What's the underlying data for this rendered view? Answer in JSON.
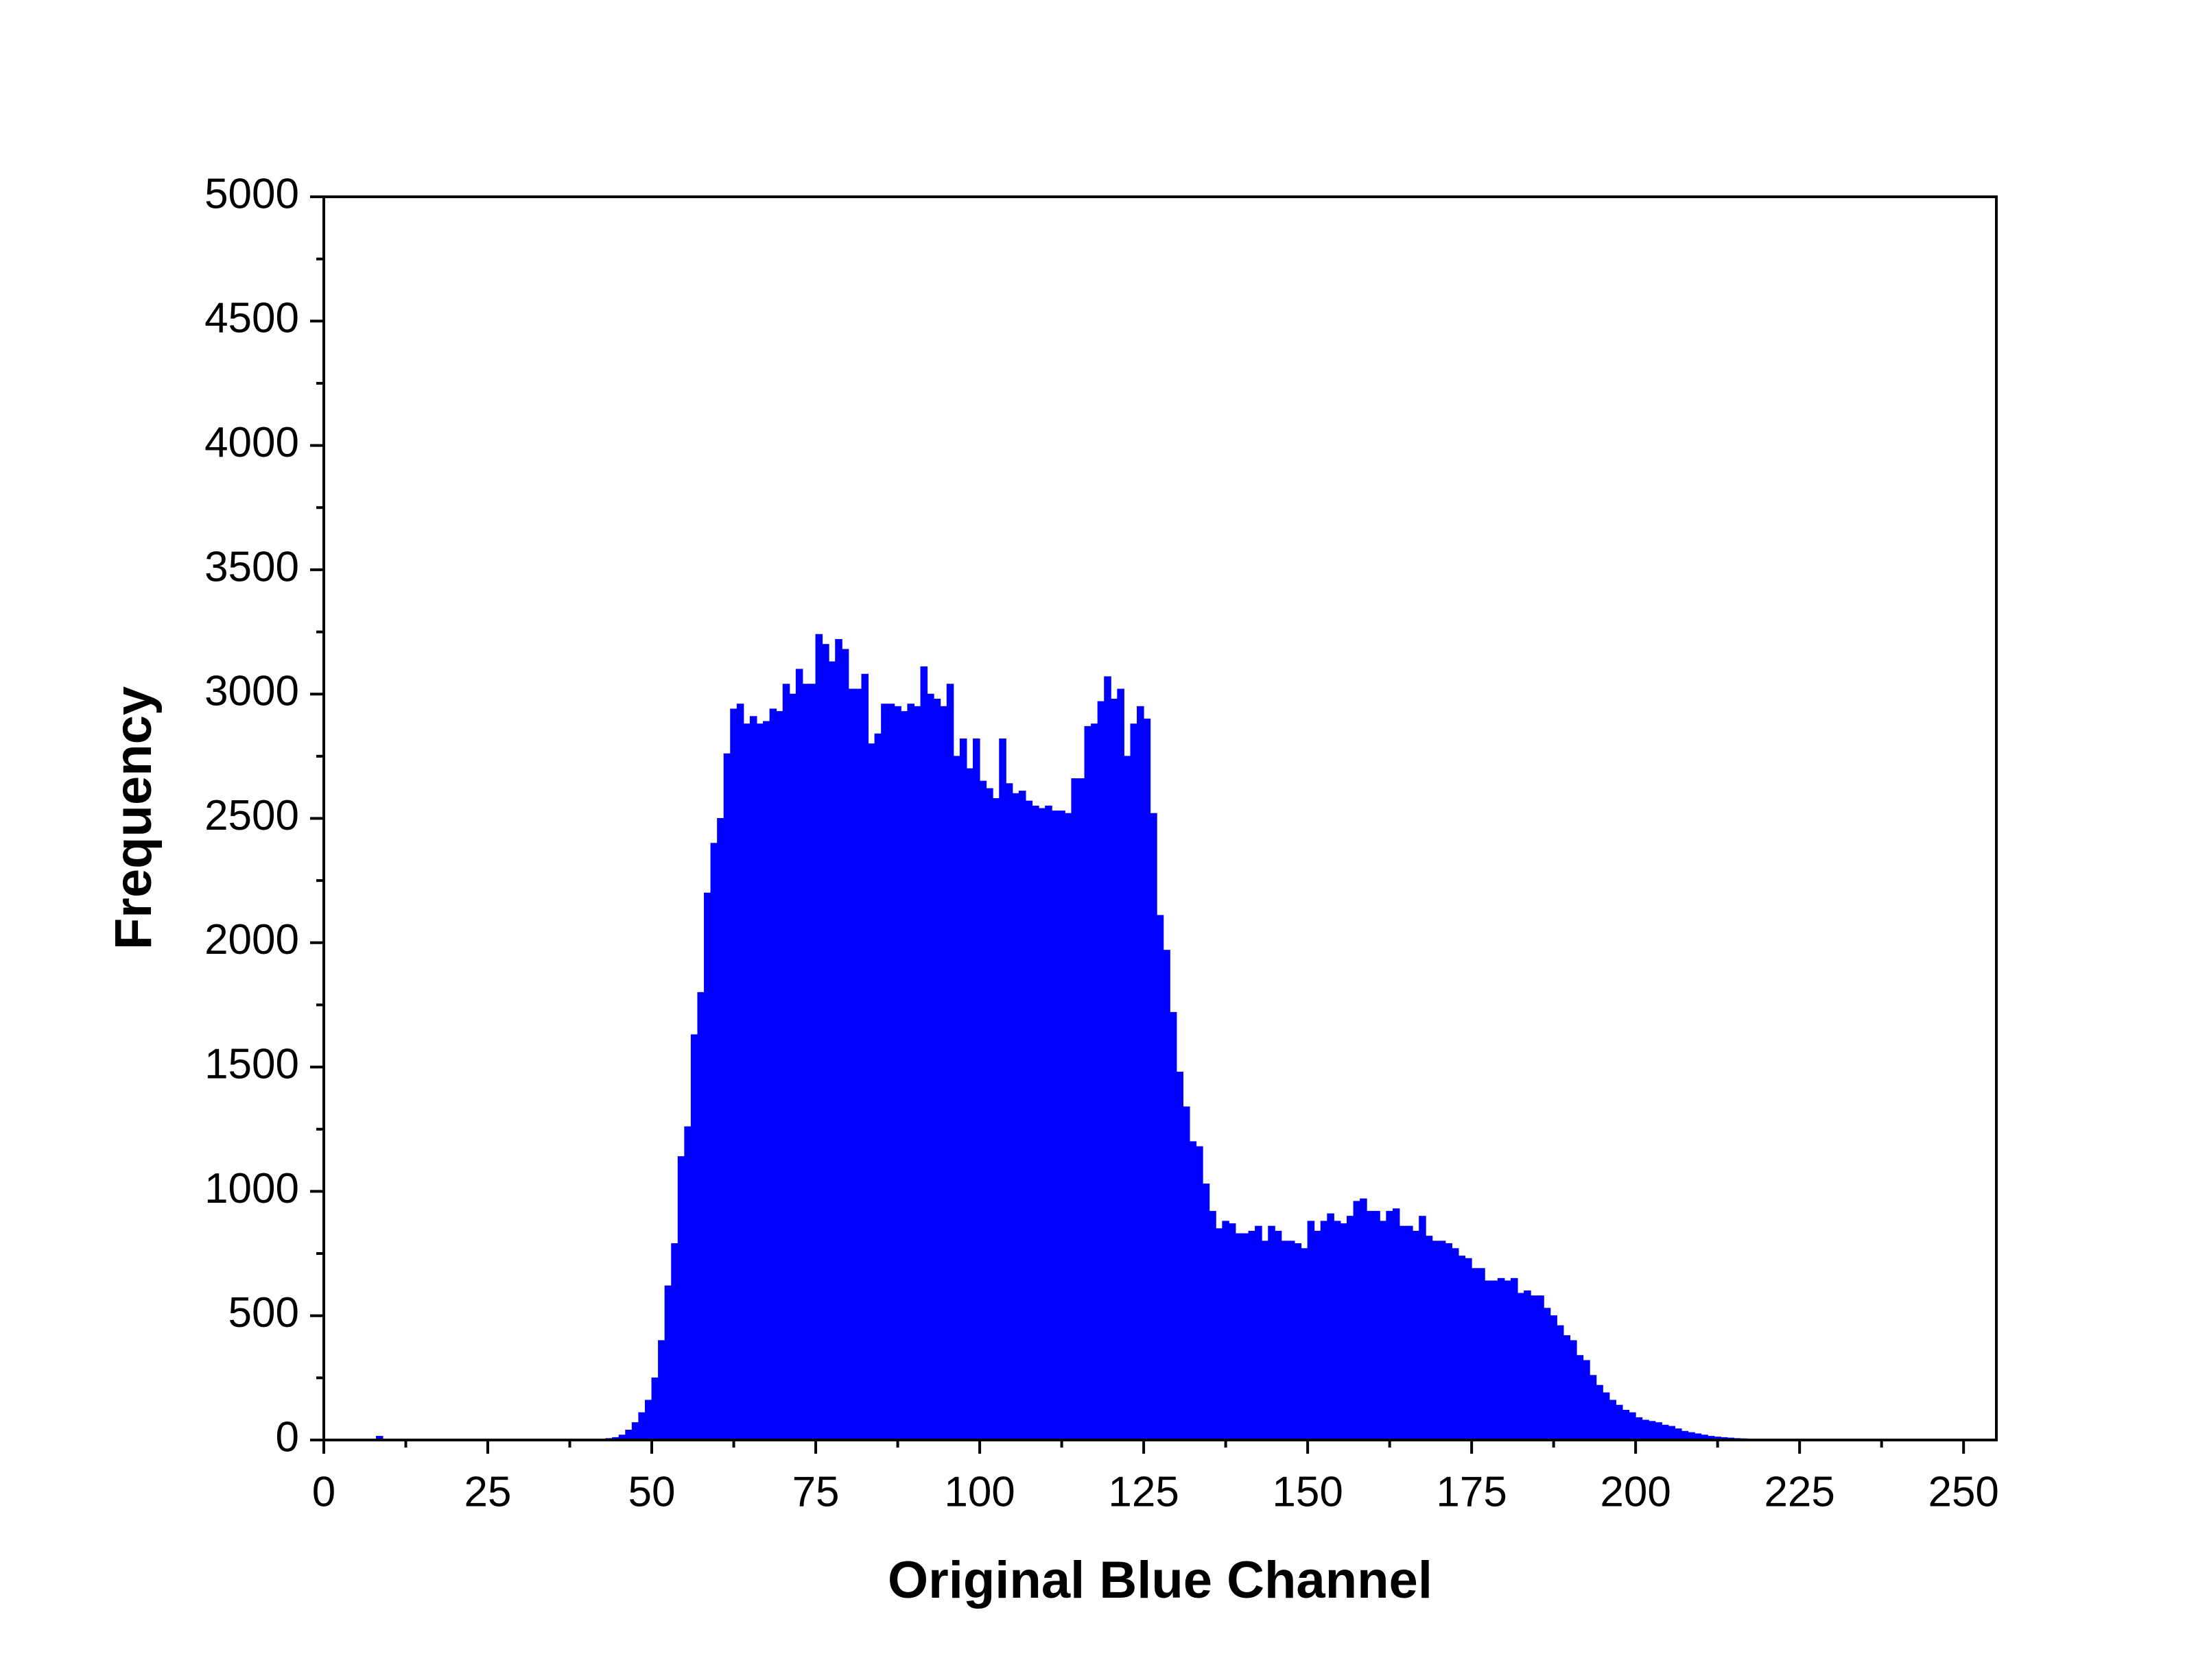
{
  "chart_data": {
    "type": "histogram",
    "xlabel": "Original Blue Channel",
    "ylabel": "Frequency",
    "color": "#0000ff",
    "bins": [
      0,
      1,
      2,
      3,
      4,
      5,
      6,
      7,
      8,
      9,
      10,
      11,
      12,
      13,
      14,
      15,
      16,
      17,
      18,
      19,
      20,
      21,
      22,
      23,
      24,
      25,
      26,
      27,
      28,
      29,
      30,
      31,
      32,
      33,
      34,
      35,
      36,
      37,
      38,
      39,
      40,
      41,
      42,
      43,
      44,
      45,
      46,
      47,
      48,
      49,
      50,
      51,
      52,
      53,
      54,
      55,
      56,
      57,
      58,
      59,
      60,
      61,
      62,
      63,
      64,
      65,
      66,
      67,
      68,
      69,
      70,
      71,
      72,
      73,
      74,
      75,
      76,
      77,
      78,
      79,
      80,
      81,
      82,
      83,
      84,
      85,
      86,
      87,
      88,
      89,
      90,
      91,
      92,
      93,
      94,
      95,
      96,
      97,
      98,
      99,
      100,
      101,
      102,
      103,
      104,
      105,
      106,
      107,
      108,
      109,
      110,
      111,
      112,
      113,
      114,
      115,
      116,
      117,
      118,
      119,
      120,
      121,
      122,
      123,
      124,
      125,
      126,
      127,
      128,
      129,
      130,
      131,
      132,
      133,
      134,
      135,
      136,
      137,
      138,
      139,
      140,
      141,
      142,
      143,
      144,
      145,
      146,
      147,
      148,
      149,
      150,
      151,
      152,
      153,
      154,
      155,
      156,
      157,
      158,
      159,
      160,
      161,
      162,
      163,
      164,
      165,
      166,
      167,
      168,
      169,
      170,
      171,
      172,
      173,
      174,
      175,
      176,
      177,
      178,
      179,
      180,
      181,
      182,
      183,
      184,
      185,
      186,
      187,
      188,
      189,
      190,
      191,
      192,
      193,
      194,
      195,
      196,
      197,
      198,
      199,
      200,
      201,
      202,
      203,
      204,
      205,
      206,
      207,
      208,
      209,
      210,
      211,
      212,
      213,
      214,
      215,
      216,
      217,
      218,
      219,
      220,
      221,
      222,
      223,
      224,
      225,
      226,
      227,
      228,
      229,
      230,
      231,
      232,
      233,
      234,
      235,
      236,
      237,
      238,
      239,
      240,
      241,
      242,
      243,
      244,
      245,
      246,
      247,
      248,
      249,
      250,
      251,
      252,
      253,
      254,
      255
    ],
    "counts": [
      0,
      0,
      0,
      0,
      0,
      0,
      0,
      0,
      15,
      0,
      0,
      0,
      0,
      0,
      0,
      0,
      0,
      0,
      0,
      0,
      0,
      0,
      0,
      0,
      0,
      0,
      0,
      0,
      0,
      0,
      0,
      0,
      0,
      0,
      0,
      0,
      0,
      0,
      0,
      0,
      2,
      3,
      4,
      6,
      10,
      20,
      40,
      70,
      110,
      160,
      250,
      400,
      620,
      790,
      1140,
      1260,
      1630,
      1800,
      2200,
      2400,
      2500,
      2760,
      2940,
      2960,
      2880,
      2910,
      2880,
      2890,
      2940,
      2930,
      3040,
      3000,
      3100,
      3040,
      3040,
      3240,
      3200,
      3130,
      3220,
      3180,
      3020,
      3020,
      3080,
      2800,
      2840,
      2960,
      2960,
      2950,
      2930,
      2960,
      2950,
      3110,
      3000,
      2980,
      2950,
      3040,
      2750,
      2820,
      2700,
      2820,
      2650,
      2620,
      2580,
      2820,
      2640,
      2600,
      2610,
      2570,
      2550,
      2540,
      2550,
      2530,
      2530,
      2520,
      2660,
      2660,
      2870,
      2880,
      2970,
      3070,
      2980,
      3020,
      2750,
      2880,
      2950,
      2900,
      2520,
      2110,
      1970,
      1720,
      1480,
      1340,
      1200,
      1180,
      1030,
      920,
      850,
      880,
      870,
      830,
      830,
      840,
      860,
      800,
      860,
      840,
      800,
      800,
      790,
      770,
      880,
      840,
      880,
      910,
      880,
      870,
      900,
      960,
      970,
      920,
      920,
      880,
      920,
      930,
      860,
      860,
      840,
      900,
      820,
      800,
      800,
      790,
      770,
      740,
      730,
      690,
      690,
      640,
      640,
      650,
      640,
      650,
      590,
      600,
      580,
      580,
      530,
      500,
      460,
      420,
      400,
      340,
      320,
      260,
      220,
      190,
      160,
      140,
      120,
      110,
      90,
      80,
      75,
      70,
      60,
      55,
      45,
      35,
      30,
      25,
      20,
      15,
      12,
      10,
      8,
      6,
      5,
      4,
      3,
      3,
      0,
      0,
      0,
      0,
      0,
      0,
      0,
      0,
      0,
      0,
      0,
      0,
      0,
      0,
      0,
      0,
      0,
      0,
      0,
      0,
      0,
      0,
      0,
      0,
      0,
      0,
      0,
      0,
      0,
      0,
      0,
      0,
      0,
      0,
      0
    ],
    "xlim": [
      0,
      255
    ],
    "xticks": [
      0,
      25,
      50,
      75,
      100,
      125,
      150,
      175,
      200,
      225,
      250
    ],
    "xminorticks": [
      12.5,
      37.5,
      62.5,
      87.5,
      112.5,
      137.5,
      162.5,
      187.5,
      212.5,
      237.5
    ],
    "ylim": [
      0,
      5000
    ],
    "yticks": [
      0,
      500,
      1000,
      1500,
      2000,
      2500,
      3000,
      3500,
      4000,
      4500,
      5000
    ],
    "yminorticks": [
      250,
      750,
      1250,
      1750,
      2250,
      2750,
      3250,
      3750,
      4250,
      4750
    ]
  }
}
